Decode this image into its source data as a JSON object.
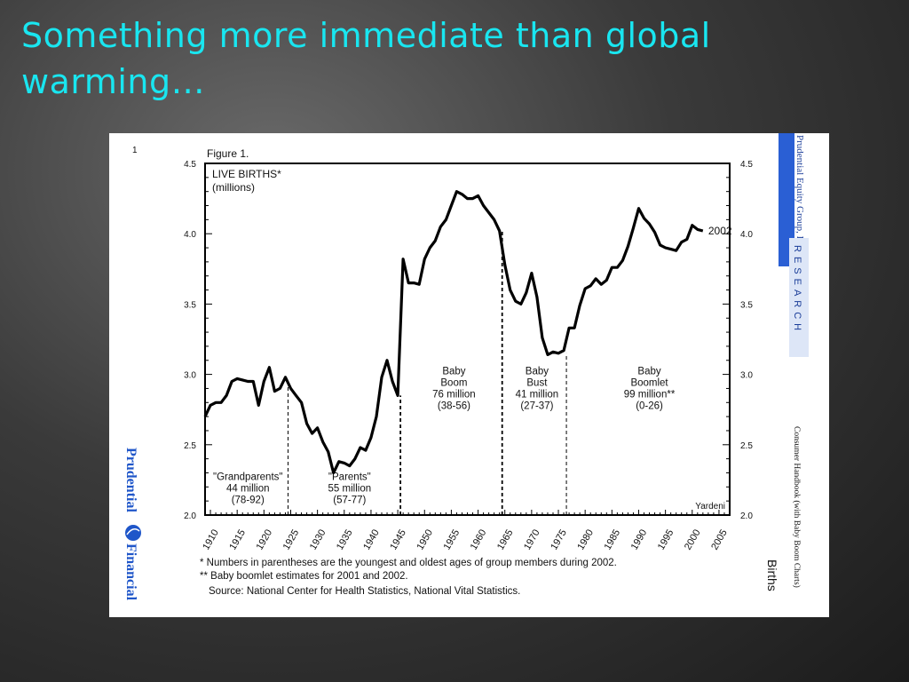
{
  "slide": {
    "title": "Something more immediate than global warming…"
  },
  "figure": {
    "figure_label": "Figure 1.",
    "corner_mark": "1",
    "watermark": "Yardeni",
    "end_label": "2002",
    "footnotes": [
      "*  Numbers in parentheses are the youngest and oldest ages of group members during 2002.",
      "** Baby boomlet estimates for 2001 and 2002.",
      "Source: National Center for Health Statistics, National Vital Statistics."
    ],
    "left_brand": {
      "top": "Prudential",
      "bottom": "Financial"
    },
    "right_strip": {
      "publisher": "Prudential Equity Group, LLC",
      "research": "RESEARCH",
      "handbook": "Consumer Handbook (with Baby Boom Charts)",
      "topic": "Births"
    },
    "colors": {
      "title": "#19e6f0",
      "brand_blue": "#1f56c9"
    }
  },
  "chart_data": {
    "type": "line",
    "title": "LIVE BIRTHS*",
    "subtitle": "(millions)",
    "xlabel": "",
    "ylabel": "",
    "xlim": [
      1909,
      2007
    ],
    "ylim": [
      2.0,
      4.5
    ],
    "x_ticks": [
      1910,
      1915,
      1920,
      1925,
      1930,
      1935,
      1940,
      1945,
      1950,
      1955,
      1960,
      1965,
      1970,
      1975,
      1980,
      1985,
      1990,
      1995,
      2000,
      2005
    ],
    "y_ticks": [
      "2.0",
      "2.5",
      "3.0",
      "3.5",
      "4.0",
      "4.5"
    ],
    "series": [
      {
        "x": [
          1909,
          1910,
          1911,
          1912,
          1913,
          1914,
          1915,
          1916,
          1917,
          1918,
          1919,
          1920,
          1921,
          1922,
          1923,
          1924,
          1925,
          1926,
          1927,
          1928,
          1929,
          1930,
          1931,
          1932,
          1933,
          1934,
          1935,
          1936,
          1937,
          1938,
          1939,
          1940,
          1941,
          1942,
          1943,
          1944,
          1945,
          1946,
          1947,
          1948,
          1949,
          1950,
          1951,
          1952,
          1953,
          1954,
          1955,
          1956,
          1957,
          1958,
          1959,
          1960,
          1961,
          1962,
          1963,
          1964,
          1965,
          1966,
          1967,
          1968,
          1969,
          1970,
          1971,
          1972,
          1973,
          1974,
          1975,
          1976,
          1977,
          1978,
          1979,
          1980,
          1981,
          1982,
          1983,
          1984,
          1985,
          1986,
          1987,
          1988,
          1989,
          1990,
          1991,
          1992,
          1993,
          1994,
          1995,
          1996,
          1997,
          1998,
          1999,
          2000,
          2001,
          2002
        ],
        "values": [
          2.7,
          2.78,
          2.8,
          2.8,
          2.85,
          2.95,
          2.97,
          2.96,
          2.95,
          2.95,
          2.78,
          2.95,
          3.05,
          2.88,
          2.9,
          2.98,
          2.9,
          2.85,
          2.8,
          2.65,
          2.58,
          2.62,
          2.52,
          2.45,
          2.3,
          2.38,
          2.37,
          2.35,
          2.4,
          2.48,
          2.46,
          2.55,
          2.7,
          2.98,
          3.1,
          2.95,
          2.85,
          3.82,
          3.65,
          3.65,
          3.64,
          3.82,
          3.9,
          3.95,
          4.05,
          4.1,
          4.2,
          4.3,
          4.28,
          4.25,
          4.25,
          4.27,
          4.2,
          4.15,
          4.1,
          4.02,
          3.78,
          3.6,
          3.52,
          3.5,
          3.58,
          3.72,
          3.55,
          3.26,
          3.14,
          3.16,
          3.15,
          3.17,
          3.33,
          3.33,
          3.49,
          3.61,
          3.63,
          3.68,
          3.64,
          3.67,
          3.76,
          3.76,
          3.81,
          3.91,
          4.04,
          4.18,
          4.11,
          4.07,
          4.01,
          3.92,
          3.9,
          3.89,
          3.88,
          3.94,
          3.96,
          4.06,
          4.03,
          4.02
        ]
      }
    ],
    "dividers": [
      1924.5,
      1945.5,
      1964.5,
      1976.5
    ],
    "annotations": [
      {
        "x": 1917,
        "y": 2.25,
        "lines": [
          "\"Grandparents\"",
          "44 million",
          "(78-92)"
        ]
      },
      {
        "x": 1936,
        "y": 2.25,
        "lines": [
          "\"Parents\"",
          "55 million",
          "(57-77)"
        ]
      },
      {
        "x": 1955.5,
        "y": 3.0,
        "lines": [
          "Baby",
          "Boom",
          "76 million",
          "(38-56)"
        ]
      },
      {
        "x": 1971,
        "y": 3.0,
        "lines": [
          "Baby",
          "Bust",
          "41 million",
          "(27-37)"
        ]
      },
      {
        "x": 1992,
        "y": 3.0,
        "lines": [
          "Baby",
          "Boomlet",
          "99 million**",
          "(0-26)"
        ]
      }
    ],
    "grid": false,
    "legend": "none"
  }
}
